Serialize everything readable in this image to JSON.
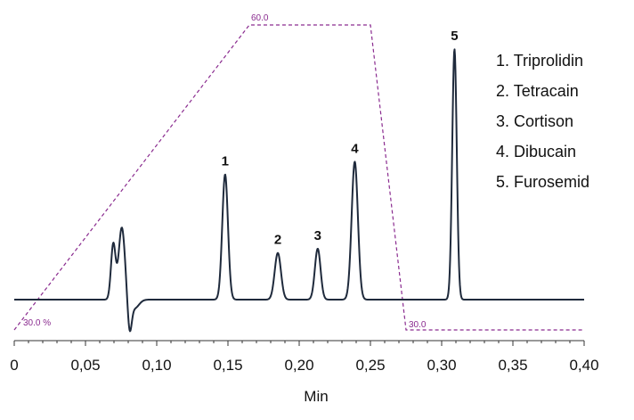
{
  "chart_data": {
    "type": "line",
    "xlabel": "Min",
    "xlim": [
      0,
      0.4
    ],
    "x_ticks": [
      "0",
      "0,05",
      "0,10",
      "0,15",
      "0,20",
      "0,25",
      "0,30",
      "0,35",
      "0,40"
    ],
    "x_tick_values": [
      0,
      0.05,
      0.1,
      0.15,
      0.2,
      0.25,
      0.3,
      0.35,
      0.4
    ],
    "series": [
      {
        "kind": "chromatogram",
        "color": "#1f2a3c",
        "baseline": 0,
        "peaks": [
          {
            "x": 0.0695,
            "height": 0.26,
            "width": 0.0016
          },
          {
            "x": 0.0755,
            "height": 0.34,
            "width": 0.0022
          },
          {
            "x": 0.148,
            "height": 0.59,
            "width": 0.002
          },
          {
            "x": 0.185,
            "height": 0.22,
            "width": 0.0022
          },
          {
            "x": 0.213,
            "height": 0.24,
            "width": 0.002
          },
          {
            "x": 0.239,
            "height": 0.65,
            "width": 0.0022
          },
          {
            "x": 0.309,
            "height": 1.18,
            "width": 0.0016
          }
        ],
        "dips": [
          {
            "x": 0.081,
            "depth": 0.14,
            "width": 0.0014
          },
          {
            "x": 0.0845,
            "depth": 0.04,
            "width": 0.003
          }
        ]
      }
    ],
    "gradient": {
      "color": "#8a2b8f",
      "points": [
        [
          0,
          30.0
        ],
        [
          0.165,
          60.0
        ],
        [
          0.25,
          60.0
        ],
        [
          0.275,
          30.0
        ],
        [
          0.4,
          30.0
        ]
      ],
      "labels": [
        "30.0 %",
        "60.0",
        "30.0"
      ]
    },
    "peak_labels": [
      {
        "text": "1",
        "x": 0.148
      },
      {
        "text": "2",
        "x": 0.185
      },
      {
        "text": "3",
        "x": 0.213
      },
      {
        "text": "4",
        "x": 0.239
      },
      {
        "text": "5",
        "x": 0.309
      }
    ],
    "legend": {
      "position": "top-right",
      "entries": [
        "1. Triprolidin",
        "2. Tetracain",
        "3. Cortison",
        "4. Dibucain",
        "5. Furosemid"
      ]
    }
  }
}
